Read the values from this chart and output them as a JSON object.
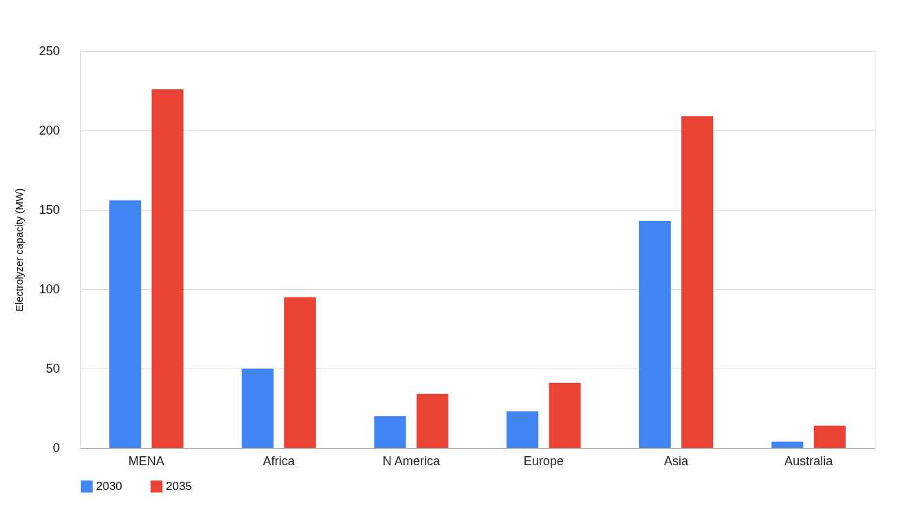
{
  "chart_data": {
    "type": "bar",
    "ylabel": "Electrolyzer capacity (MW)",
    "categories": [
      "MENA",
      "Africa",
      "N America",
      "Europe",
      "Asia",
      "Australia"
    ],
    "series": [
      {
        "name": "2030",
        "color": "#4285f4",
        "values": [
          156,
          50,
          20,
          23,
          143,
          4
        ]
      },
      {
        "name": "2035",
        "color": "#ea4335",
        "values": [
          226,
          95,
          34,
          41,
          209,
          14
        ]
      }
    ],
    "ylim": [
      0,
      250
    ],
    "yticks": [
      0,
      50,
      100,
      150,
      200,
      250
    ],
    "grid": "y",
    "legend": "bottom"
  }
}
